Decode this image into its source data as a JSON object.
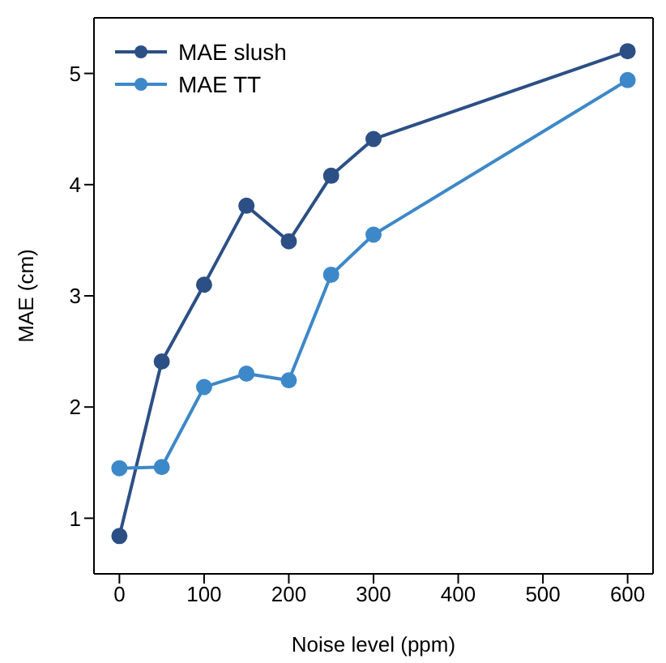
{
  "chart_data": {
    "type": "line",
    "xlabel": "Noise level (ppm)",
    "ylabel": "MAE (cm)",
    "x": [
      0,
      50,
      100,
      150,
      200,
      250,
      300,
      600
    ],
    "series": [
      {
        "name": "MAE slush",
        "color": "#2c4f85",
        "values": [
          0.84,
          2.41,
          3.1,
          3.81,
          3.49,
          4.08,
          4.41,
          5.2
        ]
      },
      {
        "name": "MAE TT",
        "color": "#3d88c8",
        "values": [
          1.45,
          1.46,
          2.18,
          2.3,
          2.24,
          3.19,
          3.55,
          4.94
        ]
      }
    ],
    "xlim": [
      -30,
      630
    ],
    "xticks": [
      0,
      100,
      200,
      300,
      400,
      500,
      600
    ],
    "ylim": [
      0.5,
      5.5
    ],
    "yticks": [
      1,
      2,
      3,
      4,
      5
    ],
    "grid": false,
    "legend": "top left",
    "marker": "circle",
    "line_style": "solid"
  }
}
